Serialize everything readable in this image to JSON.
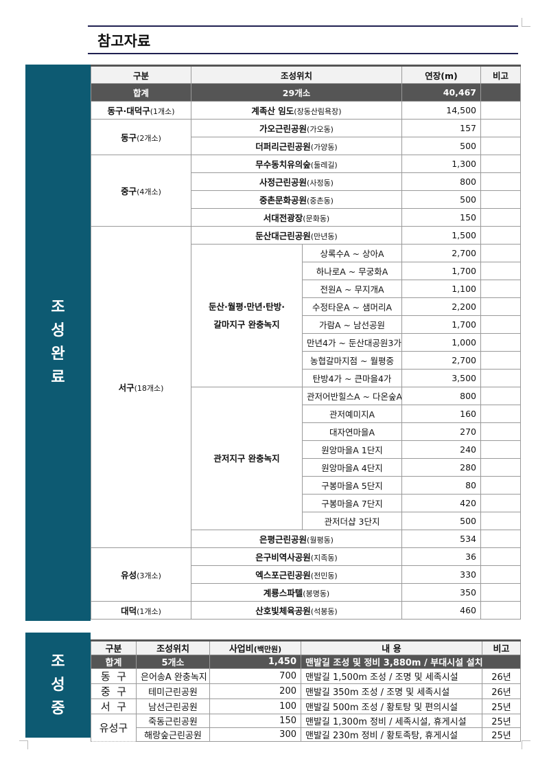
{
  "title": "참고자료",
  "completed": {
    "banner": [
      "조",
      "성",
      "완",
      "료"
    ],
    "headers": [
      "구분",
      "조성위치",
      "연장(m)",
      "비고"
    ],
    "total": {
      "label": "합계",
      "count": "29개소",
      "length": "40,467"
    },
    "groups": [
      {
        "gu": "동구·대덕구",
        "count": "(1개소)",
        "items": [
          {
            "name": "계족산 임도",
            "dong": "(장동산림욕장)",
            "len": "14,500"
          }
        ]
      },
      {
        "gu": "동구",
        "count": "(2개소)",
        "items": [
          {
            "name": "가오근린공원",
            "dong": "(가오동)",
            "len": "157"
          },
          {
            "name": "더퍼리근린공원",
            "dong": "(가양동)",
            "len": "500"
          }
        ]
      },
      {
        "gu": "중구",
        "count": "(4개소)",
        "items": [
          {
            "name": "무수동치유의숲",
            "dong": "(둘레길)",
            "len": "1,300"
          },
          {
            "name": "사정근린공원",
            "dong": "(사정동)",
            "len": "800"
          },
          {
            "name": "중촌문화공원",
            "dong": "(중촌동)",
            "len": "500"
          },
          {
            "name": "서대전광장",
            "dong": "(문화동)",
            "len": "150"
          }
        ]
      },
      {
        "gu": "서구",
        "count": "(18개소)",
        "items": [
          {
            "name": "둔산대근린공원",
            "dong": "(만년동)",
            "len": "1,500"
          },
          {
            "area": [
              "둔산·월평·만년·탄방·",
              "갈마지구 완충녹지"
            ],
            "items": [
              {
                "name": "상록수A ~ 상아A",
                "len": "2,700"
              },
              {
                "name": "하나로A ~ 무궁화A",
                "len": "1,700"
              },
              {
                "name": "전원A ~ 무지개A",
                "len": "1,100"
              },
              {
                "name": "수정타운A ~ 샘머리A",
                "len": "2,200"
              },
              {
                "name": "가람A ~ 남선공원",
                "len": "1,700"
              },
              {
                "name": "만년4가 ~ 둔산대공원3가",
                "len": "1,000"
              },
              {
                "name": "농협갈마지점 ~ 월평중",
                "len": "2,700"
              },
              {
                "name": "탄방4가 ~ 큰마을4가",
                "len": "3,500"
              }
            ]
          },
          {
            "area": [
              "관저지구 완충녹지"
            ],
            "items": [
              {
                "name": "관저어반힐스A ~ 다온숲A",
                "len": "800"
              },
              {
                "name": "관저예미지A",
                "len": "160"
              },
              {
                "name": "대자연마을A",
                "len": "270"
              },
              {
                "name": "원앙마을A 1단지",
                "len": "240"
              },
              {
                "name": "원앙마을A 4단지",
                "len": "280"
              },
              {
                "name": "구봉마을A 5단지",
                "len": "80"
              },
              {
                "name": "구봉마을A 7단지",
                "len": "420"
              },
              {
                "name": "관저더샵 3단지",
                "len": "500"
              }
            ]
          },
          {
            "name": "은평근린공원",
            "dong": "(월평동)",
            "len": "534"
          }
        ]
      },
      {
        "gu": "유성",
        "count": "(3개소)",
        "items": [
          {
            "name": "은구비역사공원",
            "dong": "(지족동)",
            "len": "36"
          },
          {
            "name": "엑스포근린공원",
            "dong": "(전민동)",
            "len": "330"
          },
          {
            "name": "계룡스파텔",
            "dong": "(봉명동)",
            "len": "350"
          }
        ]
      },
      {
        "gu": "대덕",
        "count": "(1개소)",
        "items": [
          {
            "name": "산호빛체육공원",
            "dong": "(석봉동)",
            "len": "460"
          }
        ]
      }
    ]
  },
  "in_progress": {
    "banner": [
      "조",
      "성",
      "중"
    ],
    "headers": [
      "구분",
      "조성위치",
      "사업비",
      "(백만원)",
      "내  용",
      "비고"
    ],
    "total": {
      "label": "합계",
      "count": "5개소",
      "cost": "1,450",
      "content": "맨발길 조성 및 정비 3,880m / 부대시설 설치"
    },
    "groups": [
      {
        "gu": "동  구",
        "items": [
          {
            "loc": "은어송A 완충녹지",
            "cost": "700",
            "content": "맨발길 1,500m 조성 / 조명 및 세족시설",
            "note": "26년"
          }
        ]
      },
      {
        "gu": "중  구",
        "items": [
          {
            "loc": "테미근린공원",
            "cost": "200",
            "content": "맨발길 350m 조성 / 조명 및 세족시설",
            "note": "26년"
          }
        ]
      },
      {
        "gu": "서  구",
        "items": [
          {
            "loc": "남선근린공원",
            "cost": "100",
            "content": "맨발길 500m 조성 / 황토탕 및 편의시설",
            "note": "25년"
          }
        ]
      },
      {
        "gu": "유성구",
        "items": [
          {
            "loc": "죽동근린공원",
            "cost": "150",
            "content": "맨발길 1,300m 정비 / 세족시설, 휴게시설",
            "note": "25년"
          },
          {
            "loc": "해랑숲근린공원",
            "cost": "300",
            "content": "맨발길 230m 정비 / 황토족탕, 휴게시설",
            "note": "25년"
          }
        ]
      }
    ]
  }
}
